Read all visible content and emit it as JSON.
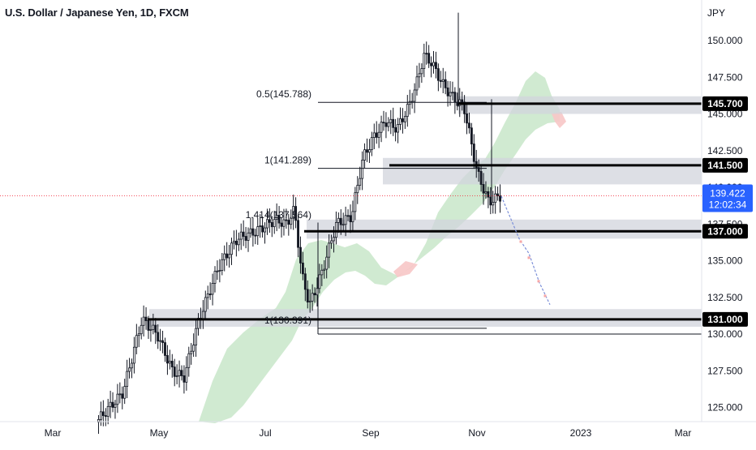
{
  "title": "U.S. Dollar / Japanese Yen, 1D, FXCM",
  "chart_data": {
    "type": "candlestick",
    "currency_label": "JPY",
    "y_ticks": [
      "150.000",
      "147.500",
      "145.000",
      "142.500",
      "140.000",
      "137.500",
      "135.000",
      "132.500",
      "130.000",
      "127.500",
      "125.000"
    ],
    "y_tick_values": [
      150,
      147.5,
      145,
      142.5,
      140,
      137.5,
      135,
      132.5,
      130,
      127.5,
      125
    ],
    "x_ticks": [
      "Mar",
      "May",
      "Jul",
      "Sep",
      "Nov",
      "2023",
      "Mar"
    ],
    "price_badge": {
      "price": "139.422",
      "countdown": "12:02:34",
      "value": 139.422
    },
    "levels": [
      {
        "label": "145.700",
        "value": 145.7
      },
      {
        "label": "141.500",
        "value": 141.5
      },
      {
        "label": "137.000",
        "value": 137.0
      },
      {
        "label": "131.000",
        "value": 131.0
      }
    ],
    "fib_labels": [
      {
        "text": "0.5(145.788)",
        "value": 145.788
      },
      {
        "text": "1(141.289)",
        "value": 141.289
      },
      {
        "text": "1.414(137.564)",
        "value": 137.564
      },
      {
        "text": "1(130.391)",
        "value": 130.391
      }
    ],
    "colors": {
      "up": "#131722",
      "down": "#131722",
      "cloud": "#c8e6c9",
      "cloud_red": "#f7c7c7",
      "badge": "#2962ff",
      "level_bg": "#d1d4dc",
      "grid": "#e0e3eb"
    }
  }
}
